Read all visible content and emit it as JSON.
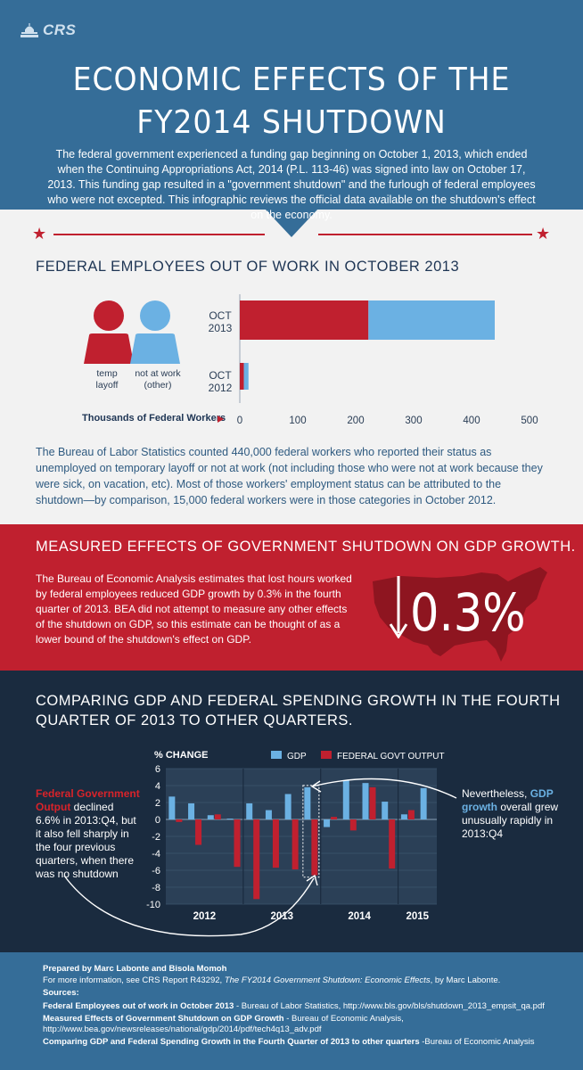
{
  "header": {
    "logo_text": "CRS",
    "title_line1": "ECONOMIC EFFECTS OF THE",
    "title_line2": "FY2014 SHUTDOWN",
    "intro": "The federal government experienced a funding gap beginning on October 1, 2013, which ended when the Continuing Appropriations Act, 2014 (P.L. 113-46) was signed into law on October 17, 2013. This funding gap resulted in a \"government shutdown\" and the furlough of federal employees who were not excepted. This infographic reviews the official data available on the shutdown's effect on the economy.",
    "colors": {
      "blue": "#356d98",
      "red": "#c0202f",
      "navy": "#1a2b3f",
      "light_blue": "#6bb1e3"
    }
  },
  "section1": {
    "title": "FEDERAL EMPLOYEES OUT OF WORK IN OCTOBER 2013",
    "legend": [
      {
        "label_line1": "temp",
        "label_line2": "layoff",
        "color": "#c0202f",
        "icon": "person-icon"
      },
      {
        "label_line1": "not at work",
        "label_line2": "(other)",
        "color": "#6bb1e3",
        "icon": "person-icon"
      }
    ],
    "axis_title": "Thousands of Federal Workers",
    "text": "The Bureau of Labor Statistics counted 440,000 federal workers who reported their status as unemployed on temporary layoff or not at work (not including those who were not at work because they were sick, on vacation, etc). Most of those workers' employment status can be attributed to the shutdown—by comparison, 15,000 federal workers were in those categories in October 2012."
  },
  "section2": {
    "title": "MEASURED EFFECTS OF GOVERNMENT SHUTDOWN ON GDP GROWTH.",
    "text": "The Bureau of Economic Analysis estimates that lost hours worked by federal employees reduced GDP growth by 0.3% in the fourth quarter of 2013. BEA did not attempt to measure any other effects of the shutdown on GDP, so this estimate can be thought of as a lower bound of the shutdown's effect on GDP.",
    "big_value": "0.3%",
    "icons": [
      "down-arrow-icon",
      "us-map-icon"
    ]
  },
  "section3": {
    "title": "COMPARING GDP AND FEDERAL SPENDING GROWTH IN THE FOURTH QUARTER OF 2013 TO OTHER QUARTERS.",
    "note_left_hl": "Federal Government Output",
    "note_left_rest": " declined 6.6% in 2013:Q4, but it also fell sharply in the four previous quarters, when there was no shutdown",
    "note_right_pre": "Nevertheless, ",
    "note_right_hl": "GDP growth",
    "note_right_rest": " overall grew unusually rapidly in 2013:Q4"
  },
  "footer": {
    "prepared": "Prepared by Marc Labonte and Bisola Momoh",
    "more_info_pre": "For more information, see CRS Report R43292, ",
    "more_info_title": "The FY2014 Government Shutdown: Economic Effects",
    "more_info_post": ", by Marc Labonte.",
    "sources_label": "Sources:",
    "src1_bold": "Federal Employees out of work in October 2013",
    "src1_rest": " - Bureau of Labor Statistics, http://www.bls.gov/bls/shutdown_2013_empsit_qa.pdf",
    "src2_bold": "Measured Effects of Government Shutdown on GDP Growth",
    "src2_rest": " - Bureau of Economic Analysis,",
    "src2_line2": "http://www.bea.gov/newsreleases/national/gdp/2014/pdf/tech4q13_adv.pdf",
    "src3_bold": "Comparing GDP and Federal Spending Growth in the Fourth Quarter of 2013 to other quarters",
    "src3_rest": " -Bureau of Economic Analysis"
  },
  "chart_data": [
    {
      "type": "bar",
      "stacked": true,
      "orientation": "horizontal",
      "title": "FEDERAL EMPLOYEES OUT OF WORK IN OCTOBER 2013",
      "xlabel": "Thousands of Federal Workers",
      "categories": [
        "OCT 2013",
        "OCT 2012"
      ],
      "category_lines": [
        [
          "OCT",
          "2013"
        ],
        [
          "OCT",
          "2012"
        ]
      ],
      "series": [
        {
          "name": "temp layoff",
          "color": "#c0202f",
          "values": [
            222,
            7
          ]
        },
        {
          "name": "not at work (other)",
          "color": "#6bb1e3",
          "values": [
            218,
            8
          ]
        }
      ],
      "xlim": [
        0,
        500
      ],
      "xticks": [
        "0",
        "100",
        "200",
        "300",
        "400",
        "500"
      ]
    },
    {
      "type": "bar",
      "title": "% CHANGE",
      "ylabel": "% CHANGE",
      "categories": [
        "2012Q1",
        "2012Q2",
        "2012Q3",
        "2012Q4",
        "2013Q1",
        "2013Q2",
        "2013Q3",
        "2013Q4",
        "2014Q1",
        "2014Q2",
        "2014Q3",
        "2014Q4",
        "2015Q1",
        "2015Q2"
      ],
      "series": [
        {
          "name": "GDP",
          "color": "#6bb1e3",
          "values": [
            2.7,
            1.9,
            0.5,
            0.1,
            1.9,
            1.1,
            3.0,
            3.8,
            -0.9,
            4.6,
            4.3,
            2.1,
            0.6,
            3.7
          ]
        },
        {
          "name": "FEDERAL GOVT OUTPUT",
          "color": "#c0202f",
          "values": [
            -0.3,
            -3.0,
            0.6,
            -5.6,
            -9.4,
            -5.7,
            -5.9,
            -6.6,
            0.3,
            -1.3,
            3.8,
            -5.8,
            1.1,
            0
          ]
        }
      ],
      "ylim": [
        -10,
        6
      ],
      "yticks": [
        "6",
        "4",
        "2",
        "0",
        "-2",
        "-4",
        "-6",
        "-8",
        "-10"
      ],
      "year_labels": [
        "2012",
        "2013",
        "2014",
        "2015"
      ],
      "highlight": "2013Q4"
    }
  ]
}
